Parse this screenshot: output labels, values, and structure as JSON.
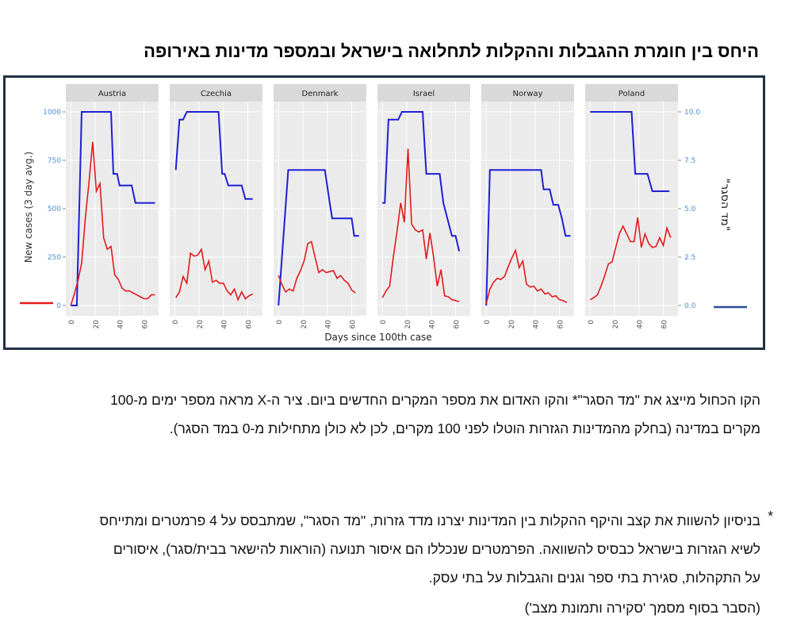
{
  "title": "היחס בין חומרת ההגבלות וההקלות לתחלואה בישראל ובמספר מדינות באירופה",
  "paragraph1": "הקו הכחול מייצג את \"מד הסגר\"* והקו האדום את מספר המקרים החדשים ביום. ציר ה-X מראה מספר ימים מ-100 מקרים במדינה (בחלק מהמדינות הגזרות הוטלו לפני 100 מקרים, לכן לא כולן מתחילות מ-0 במד הסגר).",
  "paragraph2_star": "*",
  "paragraph2": "בניסיון להשוות את קצב והיקף ההקלות בין המדינות יצרנו מדד גזרות, \"מד הסגר\", שמתבסס על 4 פרמטרים ומתייחס לשיא הגזרות בישראל כבסיס להשוואה. הפרמטרים שנכללו הם איסור תנועה (הוראות להישאר בבית/סגר), איסורים על התקהלות, סגירת בתי ספר וגנים והגבלות על בתי עסק.",
  "paragraph3": "(הסבר בסוף מסמך 'סקירה ותמונת מצב')",
  "colors": {
    "red": "#e41a1c",
    "blue": "#1f1fd6",
    "panel_bg": "#ebebeb",
    "strip_bg": "#d9d9d9",
    "left_axis": "#4a8fd6",
    "right_axis": "#4a8fd6",
    "frame": "#233044"
  },
  "chart_data": {
    "type": "line",
    "xlabel": "Days since 100th case",
    "ylabel_left": "New cases (3 day avg.)",
    "ylabel_right": "\"מד הסגר\"",
    "ylim_left": [
      0,
      1000
    ],
    "ylim_right": [
      0,
      10
    ],
    "xlim": [
      -4,
      72
    ],
    "x_ticks": [
      0,
      20,
      40,
      60
    ],
    "y_ticks_left": [
      "0",
      "250",
      "500",
      "750",
      "1000"
    ],
    "y_ticks_right": [
      "0.0",
      "2.5",
      "5.0",
      "7.5",
      "10.0"
    ],
    "grid": true,
    "legend": "left-bottom: red line; right-bottom: blue line",
    "panels": [
      {
        "name": "Austria",
        "cases": [
          [
            0,
            0
          ],
          [
            3,
            60
          ],
          [
            6,
            130
          ],
          [
            9,
            220
          ],
          [
            12,
            450
          ],
          [
            15,
            640
          ],
          [
            18,
            845
          ],
          [
            21,
            590
          ],
          [
            24,
            630
          ],
          [
            27,
            350
          ],
          [
            30,
            290
          ],
          [
            33,
            305
          ],
          [
            36,
            160
          ],
          [
            39,
            135
          ],
          [
            42,
            90
          ],
          [
            45,
            75
          ],
          [
            48,
            75
          ],
          [
            51,
            65
          ],
          [
            54,
            55
          ],
          [
            57,
            45
          ],
          [
            60,
            35
          ],
          [
            63,
            35
          ],
          [
            66,
            55
          ],
          [
            69,
            55
          ]
        ],
        "index": [
          [
            0,
            0
          ],
          [
            5,
            0
          ],
          [
            9,
            10
          ],
          [
            12,
            10
          ],
          [
            30,
            10
          ],
          [
            33,
            10
          ],
          [
            35,
            6.8
          ],
          [
            38,
            6.8
          ],
          [
            40,
            6.2
          ],
          [
            50,
            6.2
          ],
          [
            53,
            5.3
          ],
          [
            69,
            5.3
          ]
        ]
      },
      {
        "name": "Czechia",
        "cases": [
          [
            1,
            40
          ],
          [
            4,
            70
          ],
          [
            7,
            150
          ],
          [
            10,
            115
          ],
          [
            13,
            270
          ],
          [
            16,
            255
          ],
          [
            19,
            260
          ],
          [
            22,
            290
          ],
          [
            25,
            185
          ],
          [
            28,
            230
          ],
          [
            31,
            120
          ],
          [
            34,
            130
          ],
          [
            37,
            115
          ],
          [
            40,
            115
          ],
          [
            43,
            75
          ],
          [
            46,
            55
          ],
          [
            49,
            85
          ],
          [
            52,
            30
          ],
          [
            55,
            70
          ],
          [
            58,
            35
          ],
          [
            61,
            50
          ],
          [
            64,
            60
          ]
        ],
        "index": [
          [
            1,
            7
          ],
          [
            4,
            9.6
          ],
          [
            7,
            9.6
          ],
          [
            10,
            10
          ],
          [
            30,
            10
          ],
          [
            36,
            10
          ],
          [
            39,
            6.8
          ],
          [
            41,
            6.8
          ],
          [
            44,
            6.2
          ],
          [
            55,
            6.2
          ],
          [
            58,
            5.5
          ],
          [
            64,
            5.5
          ]
        ]
      },
      {
        "name": "Denmark",
        "cases": [
          [
            0,
            155
          ],
          [
            3,
            105
          ],
          [
            6,
            70
          ],
          [
            9,
            85
          ],
          [
            12,
            75
          ],
          [
            15,
            140
          ],
          [
            18,
            180
          ],
          [
            21,
            230
          ],
          [
            24,
            320
          ],
          [
            27,
            330
          ],
          [
            30,
            250
          ],
          [
            33,
            170
          ],
          [
            36,
            185
          ],
          [
            39,
            170
          ],
          [
            42,
            175
          ],
          [
            45,
            180
          ],
          [
            48,
            140
          ],
          [
            51,
            155
          ],
          [
            54,
            130
          ],
          [
            57,
            115
          ],
          [
            60,
            80
          ],
          [
            63,
            65
          ]
        ],
        "index": [
          [
            0,
            0
          ],
          [
            8,
            7
          ],
          [
            12,
            7
          ],
          [
            38,
            7
          ],
          [
            42,
            5.3
          ],
          [
            44,
            4.5
          ],
          [
            60,
            4.5
          ],
          [
            62,
            3.6
          ],
          [
            66,
            3.6
          ]
        ]
      },
      {
        "name": "Israel",
        "cases": [
          [
            0,
            40
          ],
          [
            3,
            75
          ],
          [
            6,
            100
          ],
          [
            9,
            250
          ],
          [
            12,
            380
          ],
          [
            15,
            530
          ],
          [
            18,
            430
          ],
          [
            21,
            810
          ],
          [
            24,
            420
          ],
          [
            27,
            390
          ],
          [
            30,
            380
          ],
          [
            33,
            390
          ],
          [
            36,
            240
          ],
          [
            39,
            375
          ],
          [
            42,
            250
          ],
          [
            45,
            100
          ],
          [
            48,
            185
          ],
          [
            51,
            50
          ],
          [
            54,
            45
          ],
          [
            57,
            30
          ],
          [
            60,
            25
          ],
          [
            63,
            20
          ]
        ],
        "index": [
          [
            0,
            5.3
          ],
          [
            2,
            5.3
          ],
          [
            5,
            9.6
          ],
          [
            13,
            9.6
          ],
          [
            16,
            10
          ],
          [
            33,
            10
          ],
          [
            36,
            6.8
          ],
          [
            47,
            6.8
          ],
          [
            50,
            5.3
          ],
          [
            57,
            3.6
          ],
          [
            60,
            3.6
          ],
          [
            63,
            2.8
          ]
        ]
      },
      {
        "name": "Norway",
        "cases": [
          [
            0,
            10
          ],
          [
            3,
            85
          ],
          [
            6,
            120
          ],
          [
            9,
            140
          ],
          [
            12,
            135
          ],
          [
            15,
            150
          ],
          [
            18,
            200
          ],
          [
            21,
            245
          ],
          [
            24,
            285
          ],
          [
            27,
            195
          ],
          [
            30,
            230
          ],
          [
            33,
            110
          ],
          [
            36,
            95
          ],
          [
            39,
            100
          ],
          [
            42,
            75
          ],
          [
            45,
            85
          ],
          [
            48,
            60
          ],
          [
            51,
            65
          ],
          [
            54,
            45
          ],
          [
            57,
            50
          ],
          [
            60,
            30
          ],
          [
            63,
            25
          ],
          [
            66,
            15
          ]
        ],
        "index": [
          [
            0,
            0
          ],
          [
            3,
            7
          ],
          [
            45,
            7
          ],
          [
            47,
            6
          ],
          [
            52,
            6
          ],
          [
            55,
            5.2
          ],
          [
            59,
            5.2
          ],
          [
            62,
            4.5
          ],
          [
            65,
            3.6
          ],
          [
            69,
            3.6
          ]
        ]
      },
      {
        "name": "Poland",
        "cases": [
          [
            0,
            30
          ],
          [
            3,
            40
          ],
          [
            6,
            55
          ],
          [
            9,
            100
          ],
          [
            12,
            155
          ],
          [
            15,
            215
          ],
          [
            18,
            225
          ],
          [
            21,
            300
          ],
          [
            24,
            370
          ],
          [
            27,
            410
          ],
          [
            30,
            370
          ],
          [
            33,
            330
          ],
          [
            36,
            330
          ],
          [
            39,
            455
          ],
          [
            42,
            300
          ],
          [
            45,
            370
          ],
          [
            48,
            320
          ],
          [
            51,
            300
          ],
          [
            54,
            305
          ],
          [
            57,
            350
          ],
          [
            60,
            310
          ],
          [
            63,
            400
          ],
          [
            66,
            350
          ]
        ],
        "index": [
          [
            0,
            10
          ],
          [
            30,
            10
          ],
          [
            34,
            10
          ],
          [
            37,
            6.8
          ],
          [
            47,
            6.8
          ],
          [
            51,
            5.9
          ],
          [
            65,
            5.9
          ]
        ]
      }
    ]
  }
}
